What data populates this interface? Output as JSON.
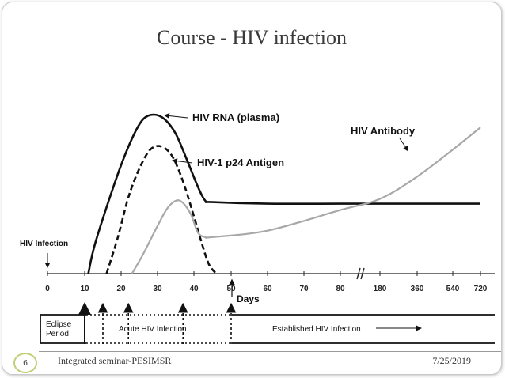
{
  "slide": {
    "title": "Course - HIV infection",
    "footer_text": "Integrated seminar-PESIMSR",
    "date": "7/25/2019",
    "slide_number": "6"
  },
  "chart_data": {
    "type": "line",
    "xlabel": "Days",
    "x_ticks": [
      "0",
      "10",
      "20",
      "30",
      "40",
      "50",
      "60",
      "70",
      "80",
      "180",
      "360",
      "540",
      "720"
    ],
    "x_break_after": "80",
    "series": [
      {
        "name": "HIV RNA (plasma)",
        "color": "#111111",
        "dash": "solid",
        "points": [
          [
            11,
            0
          ],
          [
            13,
            0.2
          ],
          [
            19,
            0.62
          ],
          [
            23,
            0.85
          ],
          [
            26,
            0.97
          ],
          [
            29,
            1.0
          ],
          [
            32,
            0.97
          ],
          [
            35,
            0.88
          ],
          [
            38,
            0.72
          ],
          [
            41,
            0.55
          ],
          [
            43,
            0.46
          ],
          [
            45,
            0.45
          ],
          [
            60,
            0.44
          ],
          [
            80,
            0.44
          ],
          [
            180,
            0.44
          ],
          [
            360,
            0.44
          ],
          [
            720,
            0.44
          ]
        ]
      },
      {
        "name": "HIV-1 p24 Antigen",
        "color": "#111111",
        "dash": "dashed",
        "points": [
          [
            16,
            0
          ],
          [
            19,
            0.22
          ],
          [
            22,
            0.48
          ],
          [
            25,
            0.66
          ],
          [
            28,
            0.78
          ],
          [
            31,
            0.8
          ],
          [
            34,
            0.74
          ],
          [
            37,
            0.58
          ],
          [
            40,
            0.36
          ],
          [
            42,
            0.2
          ],
          [
            44,
            0.06
          ],
          [
            46,
            0
          ]
        ]
      },
      {
        "name": "HIV Antibody",
        "color": "#a8a8a8",
        "dash": "solid",
        "points": [
          [
            23,
            0
          ],
          [
            26,
            0.12
          ],
          [
            30,
            0.3
          ],
          [
            33,
            0.42
          ],
          [
            36,
            0.46
          ],
          [
            39,
            0.38
          ],
          [
            41,
            0.26
          ],
          [
            43,
            0.23
          ],
          [
            45,
            0.23
          ],
          [
            60,
            0.27
          ],
          [
            80,
            0.4
          ],
          [
            180,
            0.47
          ],
          [
            360,
            0.61
          ],
          [
            540,
            0.78
          ],
          [
            720,
            0.92
          ]
        ]
      }
    ],
    "annotations": {
      "hiv_infection": "HIV Infection",
      "hiv_infection_day": 0
    },
    "phases": [
      {
        "label": "Eclipse Period",
        "start": 0,
        "end": 10
      },
      {
        "label": "Acute HIV Infection",
        "start": 10,
        "end": 50
      },
      {
        "label": "Established HIV Infection",
        "start": 50,
        "end": 720
      }
    ],
    "phase_markers": [
      10,
      15,
      22,
      37,
      50
    ]
  }
}
